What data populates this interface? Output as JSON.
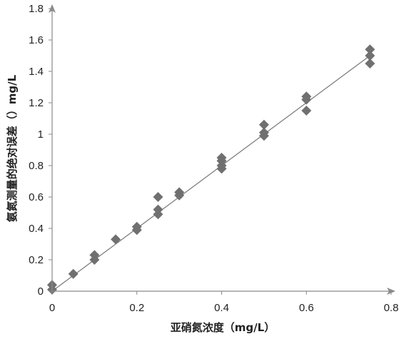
{
  "chart_data": {
    "type": "scatter",
    "xlabel": "亚硝氮浓度（mg/L）",
    "ylabel": "氨氮测量的绝对误差（）mg/L",
    "xlim": [
      0,
      0.8
    ],
    "ylim": [
      0,
      1.8
    ],
    "x_ticks": [
      "0",
      "0.2",
      "0.4",
      "0.6",
      "0.8"
    ],
    "y_ticks": [
      "0",
      "0.2",
      "0.4",
      "0.6",
      "0.8",
      "1",
      "1.2",
      "1.4",
      "1.6",
      "1.8"
    ],
    "grid": false,
    "marker": "diamond",
    "marker_color": "#707070",
    "axis_color": "#8a8a8a",
    "trendline": {
      "x": [
        0,
        0.75
      ],
      "y": [
        0,
        1.5
      ]
    },
    "points": [
      {
        "x": 0,
        "y": 0.04
      },
      {
        "x": 0,
        "y": 0.01
      },
      {
        "x": 0.05,
        "y": 0.11
      },
      {
        "x": 0.1,
        "y": 0.23
      },
      {
        "x": 0.1,
        "y": 0.2
      },
      {
        "x": 0.15,
        "y": 0.33
      },
      {
        "x": 0.2,
        "y": 0.41
      },
      {
        "x": 0.2,
        "y": 0.39
      },
      {
        "x": 0.25,
        "y": 0.6
      },
      {
        "x": 0.25,
        "y": 0.52
      },
      {
        "x": 0.25,
        "y": 0.49
      },
      {
        "x": 0.3,
        "y": 0.63
      },
      {
        "x": 0.3,
        "y": 0.61
      },
      {
        "x": 0.4,
        "y": 0.85
      },
      {
        "x": 0.4,
        "y": 0.83
      },
      {
        "x": 0.4,
        "y": 0.8
      },
      {
        "x": 0.4,
        "y": 0.78
      },
      {
        "x": 0.5,
        "y": 1.06
      },
      {
        "x": 0.5,
        "y": 1.01
      },
      {
        "x": 0.5,
        "y": 0.99
      },
      {
        "x": 0.6,
        "y": 1.24
      },
      {
        "x": 0.6,
        "y": 1.22
      },
      {
        "x": 0.6,
        "y": 1.15
      },
      {
        "x": 0.75,
        "y": 1.54
      },
      {
        "x": 0.75,
        "y": 1.5
      },
      {
        "x": 0.75,
        "y": 1.45
      }
    ]
  }
}
